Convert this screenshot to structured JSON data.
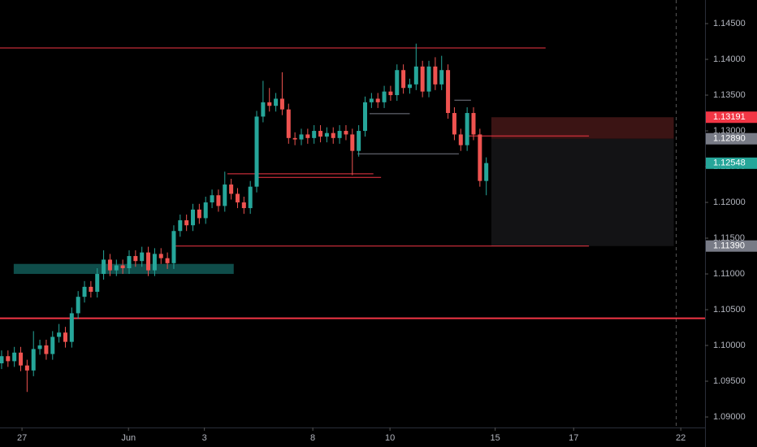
{
  "chart_data": {
    "type": "candlestick",
    "up_color": "#26a69a",
    "down_color": "#ef5350",
    "xlim": [
      -0.25,
      110.3
    ],
    "ylim": [
      1.0858,
      1.1483
    ],
    "xticks": [
      {
        "value": 3.2,
        "label": "27"
      },
      {
        "value": 19.9,
        "label": "Jun"
      },
      {
        "value": 31.8,
        "label": "3"
      },
      {
        "value": 48.8,
        "label": "8"
      },
      {
        "value": 60.9,
        "label": "10"
      },
      {
        "value": 77.4,
        "label": "15"
      },
      {
        "value": 89.7,
        "label": "17"
      },
      {
        "value": 106.5,
        "label": "22"
      }
    ],
    "yticks": [
      {
        "value": 1.145,
        "label": "1.14500"
      },
      {
        "value": 1.14,
        "label": "1.14000"
      },
      {
        "value": 1.135,
        "label": "1.13500"
      },
      {
        "value": 1.13,
        "label": "1.13000"
      },
      {
        "value": 1.125,
        "label": "1.12500"
      },
      {
        "value": 1.12,
        "label": "1.12000"
      },
      {
        "value": 1.115,
        "label": "1.11500"
      },
      {
        "value": 1.11,
        "label": "1.11000"
      },
      {
        "value": 1.105,
        "label": "1.10500"
      },
      {
        "value": 1.1,
        "label": "1.10000"
      },
      {
        "value": 1.095,
        "label": "1.09500"
      },
      {
        "value": 1.09,
        "label": "1.09000"
      }
    ],
    "open": [
      1.0975,
      1.0985,
      1.0978,
      1.099,
      1.0972,
      1.0965,
      1.0995,
      1.1,
      1.0988,
      1.1012,
      1.1018,
      1.1005,
      1.1045,
      1.1068,
      1.1082,
      1.1075,
      1.11,
      1.112,
      1.1105,
      1.1112,
      1.1108,
      1.1125,
      1.1118,
      1.113,
      1.1105,
      1.1128,
      1.1122,
      1.1115,
      1.116,
      1.1175,
      1.1168,
      1.119,
      1.1178,
      1.12,
      1.121,
      1.1195,
      1.1225,
      1.1212,
      1.12,
      1.1192,
      1.1222,
      1.132,
      1.134,
      1.1335,
      1.1345,
      1.133,
      1.129,
      1.1288,
      1.1295,
      1.129,
      1.13,
      1.1292,
      1.1297,
      1.129,
      1.13,
      1.1295,
      1.1272,
      1.13,
      1.134,
      1.1345,
      1.134,
      1.1355,
      1.135,
      1.1385,
      1.136,
      1.1365,
      1.139,
      1.1355,
      1.139,
      1.1365,
      1.1385,
      1.1325,
      1.1295,
      1.128,
      1.1325,
      1.1295,
      1.123
    ],
    "high": [
      1.0993,
      1.0993,
      1.0998,
      1.0998,
      1.098,
      1.102,
      1.1008,
      1.1008,
      1.102,
      1.103,
      1.1026,
      1.1053,
      1.1076,
      1.109,
      1.109,
      1.1108,
      1.1133,
      1.1128,
      1.112,
      1.112,
      1.1133,
      1.1133,
      1.1138,
      1.1138,
      1.1136,
      1.1136,
      1.113,
      1.1168,
      1.1183,
      1.1183,
      1.1198,
      1.1198,
      1.1208,
      1.1218,
      1.1218,
      1.1243,
      1.1233,
      1.122,
      1.1208,
      1.123,
      1.1328,
      1.137,
      1.136,
      1.1353,
      1.1382,
      1.1338,
      1.1298,
      1.1303,
      1.1303,
      1.1308,
      1.1308,
      1.1305,
      1.1305,
      1.1308,
      1.1308,
      1.1303,
      1.1308,
      1.1348,
      1.1353,
      1.1353,
      1.1363,
      1.1363,
      1.1393,
      1.1393,
      1.1373,
      1.1422,
      1.1398,
      1.1398,
      1.1403,
      1.1405,
      1.1393,
      1.1333,
      1.1303,
      1.1333,
      1.1333,
      1.1303,
      1.1263
    ],
    "low": [
      1.0967,
      1.097,
      1.097,
      1.0964,
      1.0935,
      1.0957,
      1.0987,
      1.098,
      1.098,
      1.1004,
      1.0997,
      1.0997,
      1.1037,
      1.106,
      1.1067,
      1.1067,
      1.1092,
      1.1097,
      1.1097,
      1.11,
      1.11,
      1.111,
      1.111,
      1.1097,
      1.1097,
      1.1114,
      1.1107,
      1.1107,
      1.1152,
      1.116,
      1.116,
      1.117,
      1.117,
      1.1192,
      1.1187,
      1.1187,
      1.1204,
      1.1192,
      1.1184,
      1.1184,
      1.1214,
      1.1312,
      1.1327,
      1.1327,
      1.1322,
      1.1282,
      1.128,
      1.128,
      1.1282,
      1.1282,
      1.1284,
      1.1284,
      1.1282,
      1.1282,
      1.1287,
      1.1238,
      1.1264,
      1.1292,
      1.1332,
      1.1332,
      1.1332,
      1.1342,
      1.1342,
      1.1352,
      1.1352,
      1.1357,
      1.1347,
      1.1347,
      1.1357,
      1.1357,
      1.1317,
      1.1287,
      1.1272,
      1.1272,
      1.1287,
      1.1222,
      1.121
    ],
    "close": [
      1.0985,
      1.0978,
      1.099,
      1.0972,
      1.0965,
      1.0995,
      1.1,
      1.0988,
      1.1012,
      1.1018,
      1.1005,
      1.1045,
      1.1068,
      1.1082,
      1.1075,
      1.11,
      1.112,
      1.1105,
      1.1112,
      1.1108,
      1.1125,
      1.1118,
      1.113,
      1.1105,
      1.1128,
      1.1122,
      1.1115,
      1.116,
      1.1175,
      1.1168,
      1.119,
      1.1178,
      1.12,
      1.121,
      1.1195,
      1.1225,
      1.1212,
      1.12,
      1.1192,
      1.1222,
      1.132,
      1.134,
      1.1335,
      1.1345,
      1.133,
      1.129,
      1.1288,
      1.1295,
      1.129,
      1.13,
      1.1292,
      1.1297,
      1.129,
      1.13,
      1.1295,
      1.1272,
      1.13,
      1.134,
      1.1345,
      1.134,
      1.1355,
      1.135,
      1.1385,
      1.136,
      1.1365,
      1.139,
      1.1355,
      1.139,
      1.1365,
      1.1385,
      1.1325,
      1.1295,
      1.128,
      1.1325,
      1.1295,
      1.123,
      1.1255
    ],
    "levels": [
      {
        "price": 1.1416,
        "x": [
          -0.25,
          85.3
        ],
        "color": "#f23645",
        "width": 1
      },
      {
        "price": 1.1038,
        "x": [
          -0.25,
          110.3
        ],
        "color": "#f23645",
        "width": 2
      },
      {
        "price": 1.1139,
        "x": [
          26.9,
          92.1
        ],
        "color": "#f23645",
        "width": 1
      },
      {
        "price": 1.1293,
        "x": [
          73,
          92.1
        ],
        "color": "#f23645",
        "width": 1
      },
      {
        "price": 1.124,
        "x": [
          35.4,
          58.3
        ],
        "color": "#f23645",
        "width": 1
      },
      {
        "price": 1.1235,
        "x": [
          40.2,
          59.5
        ],
        "color": "#f23645",
        "width": 1
      },
      {
        "price": 1.1268,
        "x": [
          55.8,
          71.7
        ],
        "color": "#787b86",
        "width": 1
      },
      {
        "price": 1.1324,
        "x": [
          57.7,
          64.0
        ],
        "color": "#787b86",
        "width": 1
      },
      {
        "price": 1.1343,
        "x": [
          71.0,
          73.6
        ],
        "color": "#787b86",
        "width": 1
      }
    ],
    "zone": {
      "price": [
        1.11,
        1.1114
      ],
      "x": [
        1.9,
        36.4
      ],
      "color": "#0f4d4a"
    },
    "position": {
      "x": [
        76.8,
        105.4
      ],
      "entry": 1.1289,
      "stop": 1.13191,
      "target": 1.1139,
      "stop_color": "#3b1414",
      "target_color": "#131315"
    },
    "price_labels": [
      {
        "value": 1.13191,
        "label": "1.13191",
        "color": "#f23645"
      },
      {
        "value": 1.1289,
        "label": "1.12890",
        "color": "#787b86"
      },
      {
        "value": 1.12548,
        "label": "1.12548",
        "color": "#26a69a"
      },
      {
        "value": 1.1139,
        "label": "1.11390",
        "color": "#787b86"
      }
    ]
  }
}
